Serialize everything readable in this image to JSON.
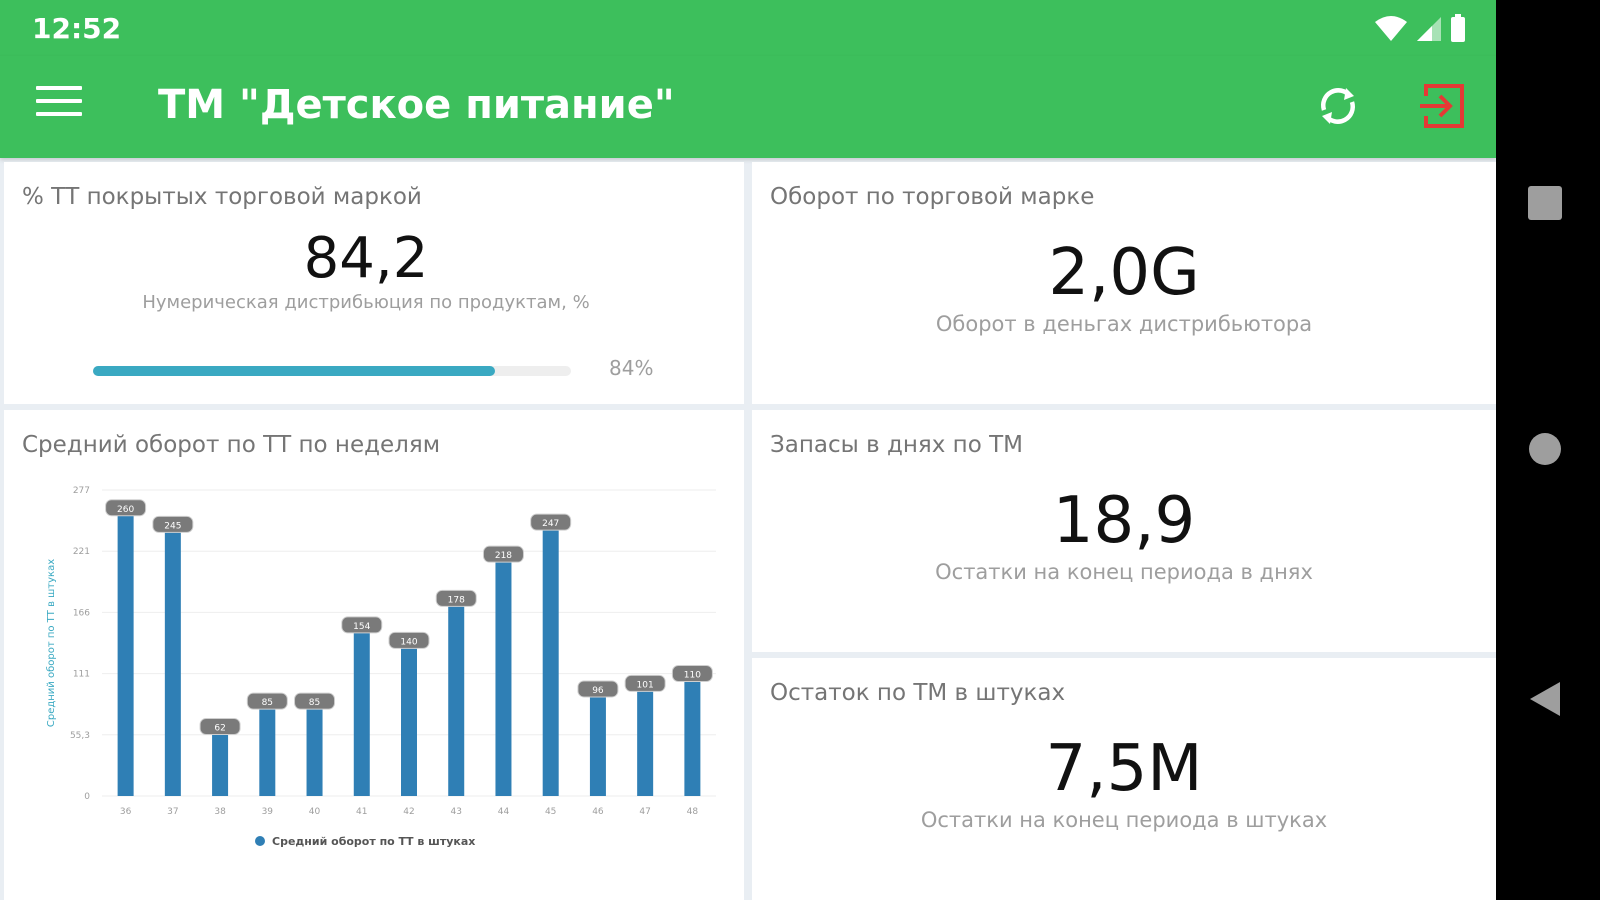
{
  "status_bar": {
    "time": "12:52"
  },
  "app_bar": {
    "title": "ТМ \"Детское питание\"",
    "menu_icon": "hamburger-menu-icon",
    "sync_icon": "sync-icon",
    "logout_icon": "logout-icon"
  },
  "cards": {
    "coverage": {
      "title": "% ТТ покрытых торговой маркой",
      "value": "84,2",
      "caption": "Нумерическая дистрибьюция по продуктам, %",
      "progress_percent": 84,
      "progress_label": "84%"
    },
    "turnover": {
      "title": "Оборот по торговой марке",
      "value": "2,0G",
      "caption": "Оборот в деньгах дистрибьютора"
    },
    "stock_days": {
      "title": "Запасы в днях по ТМ",
      "value": "18,9",
      "caption": "Остатки на конец периода в днях"
    },
    "stock_units": {
      "title": "Остаток по ТМ в штуках",
      "value": "7,5M",
      "caption": "Остатки на конец периода в штуках"
    },
    "chart": {
      "title": "Средний оборот по ТТ по неделям"
    }
  },
  "chart_data": {
    "type": "bar",
    "categories": [
      "36",
      "37",
      "38",
      "39",
      "40",
      "41",
      "42",
      "43",
      "44",
      "45",
      "46",
      "47",
      "48"
    ],
    "series": [
      {
        "name": "Средний оборот по ТТ в штуках",
        "values": [
          260,
          245,
          62,
          85,
          85,
          154,
          140,
          178,
          218,
          247,
          96,
          101,
          110
        ]
      }
    ],
    "ylabel": "Средний оборот по ТТ в штуках",
    "ylim": [
      0,
      277
    ],
    "yticks": [
      "0",
      "55,3",
      "111",
      "166",
      "221",
      "277"
    ],
    "grid": true,
    "legend": "bottom",
    "bar_color": "#2f7fb5"
  },
  "colors": {
    "primary": "#3dbf5c",
    "progress": "#3aa9c2",
    "logout": "#e53935"
  },
  "nav_bar": {
    "recents_icon": "recents-square-icon",
    "home_icon": "home-circle-icon",
    "back_icon": "back-triangle-icon"
  }
}
